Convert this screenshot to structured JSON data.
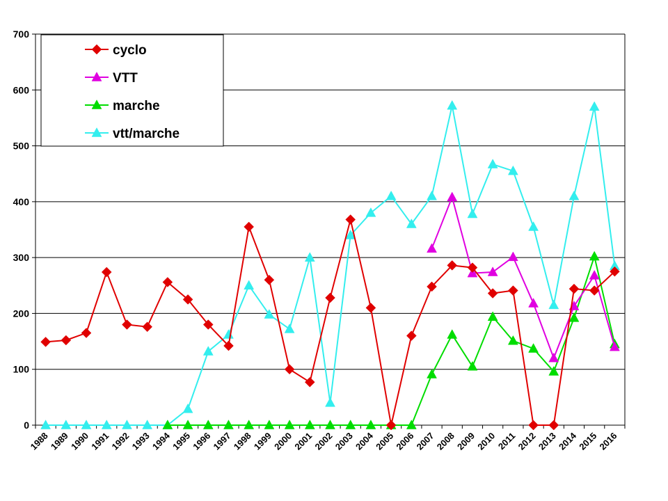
{
  "chart_data": {
    "type": "line",
    "title": "",
    "xlabel": "",
    "ylabel": "",
    "ylim": [
      0,
      700
    ],
    "yticks": [
      0,
      100,
      200,
      300,
      400,
      500,
      600,
      700
    ],
    "grid": "horizontal",
    "legend_position": "top-left",
    "categories": [
      "1988",
      "1989",
      "1990",
      "1991",
      "1992",
      "1993",
      "1994",
      "1995",
      "1996",
      "1997",
      "1998",
      "1999",
      "2000",
      "2001",
      "2002",
      "2003",
      "2004",
      "2005",
      "2006",
      "2007",
      "2008",
      "2009",
      "2010",
      "2011",
      "2012",
      "2013",
      "2014",
      "2015",
      "2016"
    ],
    "series": [
      {
        "name": "cyclo",
        "color": "#e00000",
        "marker": "diamond",
        "values": [
          149,
          152,
          165,
          274,
          180,
          176,
          256,
          225,
          180,
          142,
          355,
          260,
          100,
          77,
          228,
          368,
          210,
          0,
          160,
          248,
          286,
          282,
          236,
          241,
          0,
          0,
          244,
          241,
          275
        ]
      },
      {
        "name": "VTT",
        "color": "#e000e0",
        "marker": "triangle",
        "values": [
          null,
          null,
          null,
          null,
          null,
          null,
          null,
          null,
          null,
          null,
          null,
          null,
          null,
          null,
          null,
          null,
          null,
          null,
          null,
          316,
          408,
          272,
          274,
          301,
          218,
          120,
          213,
          268,
          140
        ]
      },
      {
        "name": "marche",
        "color": "#00dd00",
        "marker": "triangle",
        "values": [
          null,
          null,
          null,
          null,
          null,
          null,
          0,
          0,
          0,
          0,
          0,
          0,
          0,
          0,
          0,
          0,
          0,
          0,
          0,
          91,
          162,
          105,
          194,
          151,
          137,
          96,
          192,
          302,
          145
        ]
      },
      {
        "name": "vtt/marche",
        "color": "#33eeee",
        "marker": "triangle",
        "values": [
          0,
          0,
          0,
          0,
          0,
          0,
          0,
          29,
          132,
          162,
          250,
          198,
          172,
          300,
          40,
          340,
          380,
          410,
          360,
          410,
          572,
          378,
          467,
          455,
          355,
          215,
          410,
          570,
          285
        ]
      }
    ]
  }
}
